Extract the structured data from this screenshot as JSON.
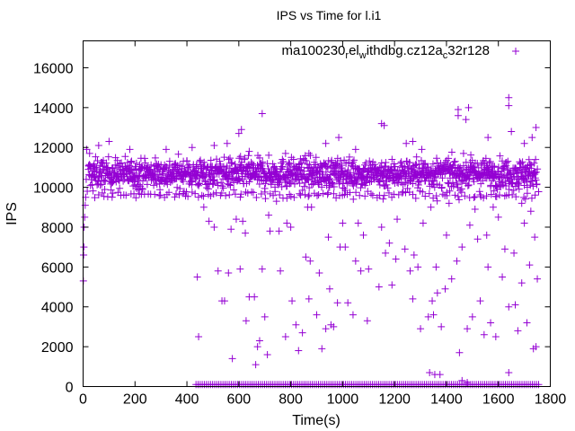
{
  "chart_data": {
    "type": "scatter",
    "title": "IPS vs Time for l.i1",
    "xlabel": "Time(s)",
    "ylabel": "IPS",
    "xlim": [
      0,
      1800
    ],
    "ylim": [
      0,
      17350
    ],
    "xticks": [
      "0",
      "200",
      "400",
      "600",
      "800",
      "1000",
      "1200",
      "1400",
      "1600",
      "1800"
    ],
    "xtick_values": [
      0,
      200,
      400,
      600,
      800,
      1000,
      1200,
      1400,
      1600,
      1800
    ],
    "yticks": [
      "0",
      "2000",
      "4000",
      "6000",
      "8000",
      "10000",
      "12000",
      "14000",
      "16000"
    ],
    "ytick_values": [
      0,
      2000,
      4000,
      6000,
      8000,
      10000,
      12000,
      14000,
      16000
    ],
    "grid": false,
    "legend": {
      "position": "top-right",
      "label_parts": [
        {
          "text": "ma100230",
          "sub": false
        },
        {
          "text": "r",
          "sub": true
        },
        {
          "text": "el",
          "sub": false
        },
        {
          "text": "w",
          "sub": true
        },
        {
          "text": "ithdbg.cz12a",
          "sub": false
        },
        {
          "text": "c",
          "sub": true
        },
        {
          "text": "32r128",
          "sub": false
        }
      ],
      "label": "ma100230_rel_withdbg.cz12a_c32r128"
    },
    "marker": "+",
    "color": "#9400d3",
    "series": [
      {
        "name": "ma100230_rel_withdbg.cz12a_c32r128",
        "startup": [
          [
            1,
            5300
          ],
          [
            2,
            6600
          ],
          [
            3,
            7000
          ],
          [
            4,
            8000
          ],
          [
            6,
            8500
          ],
          [
            8,
            9100
          ],
          [
            10,
            9500
          ],
          [
            12,
            10400
          ],
          [
            14,
            11900
          ],
          [
            16,
            9800
          ],
          [
            20,
            10900
          ],
          [
            25,
            11700
          ]
        ],
        "main_band": {
          "x_start": 20,
          "x_end": 1750,
          "step": 1.2,
          "center": 10700,
          "spread": 500
        },
        "lower_band": {
          "x_start": 30,
          "x_end": 1750,
          "step": 12,
          "center": 9600,
          "spread": 150
        },
        "zero_band": {
          "x_start": 435,
          "x_end": 1755,
          "step": 8,
          "value": 100
        },
        "outliers": [
          [
            100,
            12300
          ],
          [
            60,
            12100
          ],
          [
            180,
            11900
          ],
          [
            320,
            11900
          ],
          [
            420,
            12000
          ],
          [
            505,
            12100
          ],
          [
            555,
            12200
          ],
          [
            600,
            12700
          ],
          [
            610,
            12900
          ],
          [
            690,
            13700
          ],
          [
            640,
            11800
          ],
          [
            780,
            11700
          ],
          [
            870,
            11700
          ],
          [
            935,
            12200
          ],
          [
            985,
            12500
          ],
          [
            1050,
            11900
          ],
          [
            1150,
            13200
          ],
          [
            1160,
            13100
          ],
          [
            1245,
            12200
          ],
          [
            1270,
            12300
          ],
          [
            1305,
            11900
          ],
          [
            1445,
            13900
          ],
          [
            1445,
            13600
          ],
          [
            1485,
            14000
          ],
          [
            1475,
            13400
          ],
          [
            1560,
            12500
          ],
          [
            1640,
            14500
          ],
          [
            1640,
            14100
          ],
          [
            1650,
            12800
          ],
          [
            1745,
            13000
          ],
          [
            1730,
            12500
          ],
          [
            1700,
            12200
          ],
          [
            440,
            5500
          ],
          [
            445,
            2500
          ],
          [
            465,
            9000
          ],
          [
            485,
            8300
          ],
          [
            505,
            8000
          ],
          [
            520,
            5800
          ],
          [
            535,
            4300
          ],
          [
            545,
            4300
          ],
          [
            560,
            5700
          ],
          [
            570,
            7900
          ],
          [
            575,
            1400
          ],
          [
            590,
            8400
          ],
          [
            605,
            5900
          ],
          [
            615,
            8300
          ],
          [
            625,
            7700
          ],
          [
            628,
            3300
          ],
          [
            640,
            4500
          ],
          [
            660,
            4500
          ],
          [
            665,
            1100
          ],
          [
            672,
            2000
          ],
          [
            680,
            2300
          ],
          [
            690,
            5900
          ],
          [
            700,
            3500
          ],
          [
            710,
            1600
          ],
          [
            715,
            8600
          ],
          [
            720,
            7800
          ],
          [
            745,
            9300
          ],
          [
            755,
            7800
          ],
          [
            760,
            5800
          ],
          [
            780,
            2500
          ],
          [
            785,
            8200
          ],
          [
            800,
            8000
          ],
          [
            805,
            4300
          ],
          [
            820,
            3100
          ],
          [
            830,
            1800
          ],
          [
            845,
            2700
          ],
          [
            858,
            6500
          ],
          [
            865,
            9000
          ],
          [
            870,
            4400
          ],
          [
            875,
            6300
          ],
          [
            880,
            9000
          ],
          [
            900,
            3600
          ],
          [
            910,
            5700
          ],
          [
            920,
            1900
          ],
          [
            935,
            2900
          ],
          [
            945,
            7500
          ],
          [
            950,
            4900
          ],
          [
            955,
            3100
          ],
          [
            965,
            3000
          ],
          [
            980,
            4200
          ],
          [
            990,
            7000
          ],
          [
            1000,
            8200
          ],
          [
            1010,
            7000
          ],
          [
            1020,
            4200
          ],
          [
            1040,
            3600
          ],
          [
            1050,
            6300
          ],
          [
            1060,
            8200
          ],
          [
            1070,
            5800
          ],
          [
            1080,
            7600
          ],
          [
            1095,
            3300
          ],
          [
            1100,
            5900
          ],
          [
            1140,
            5000
          ],
          [
            1150,
            8000
          ],
          [
            1165,
            6700
          ],
          [
            1180,
            7200
          ],
          [
            1190,
            5100
          ],
          [
            1205,
            6400
          ],
          [
            1210,
            8400
          ],
          [
            1240,
            6900
          ],
          [
            1260,
            5800
          ],
          [
            1270,
            4400
          ],
          [
            1275,
            6600
          ],
          [
            1290,
            6000
          ],
          [
            1300,
            2900
          ],
          [
            1310,
            8200
          ],
          [
            1330,
            3500
          ],
          [
            1340,
            9000
          ],
          [
            1345,
            4300
          ],
          [
            1350,
            3600
          ],
          [
            1360,
            6000
          ],
          [
            1365,
            4700
          ],
          [
            1380,
            3000
          ],
          [
            1395,
            4900
          ],
          [
            1400,
            7600
          ],
          [
            1410,
            9200
          ],
          [
            1420,
            5400
          ],
          [
            1440,
            6300
          ],
          [
            1450,
            1700
          ],
          [
            1460,
            7000
          ],
          [
            1480,
            2900
          ],
          [
            1490,
            8100
          ],
          [
            1500,
            3500
          ],
          [
            1510,
            8900
          ],
          [
            1520,
            7400
          ],
          [
            1530,
            4300
          ],
          [
            1545,
            2600
          ],
          [
            1555,
            7600
          ],
          [
            1560,
            6000
          ],
          [
            1570,
            3200
          ],
          [
            1580,
            9000
          ],
          [
            1590,
            2500
          ],
          [
            1600,
            8500
          ],
          [
            1615,
            5500
          ],
          [
            1625,
            6900
          ],
          [
            1640,
            4000
          ],
          [
            1660,
            6700
          ],
          [
            1665,
            4100
          ],
          [
            1675,
            2800
          ],
          [
            1690,
            5200
          ],
          [
            1700,
            8200
          ],
          [
            1710,
            3200
          ],
          [
            1720,
            6100
          ],
          [
            1735,
            1900
          ],
          [
            1745,
            2000
          ],
          [
            1750,
            5400
          ],
          [
            1740,
            7500
          ],
          [
            1725,
            8800
          ],
          [
            1690,
            9200
          ],
          [
            1355,
            600
          ],
          [
            1375,
            600
          ],
          [
            1335,
            700
          ],
          [
            1460,
            300
          ],
          [
            1480,
            200
          ],
          [
            1640,
            700
          ]
        ]
      }
    ]
  }
}
